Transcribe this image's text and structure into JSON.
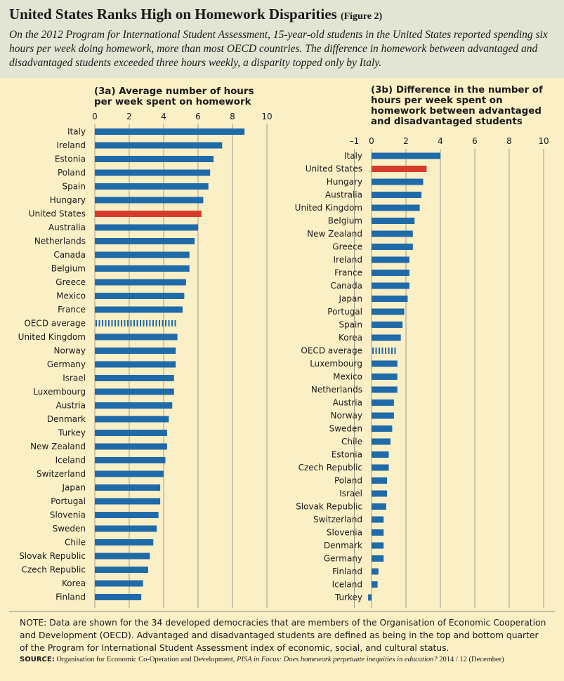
{
  "header": {
    "title": "United States Ranks High on Homework Disparities",
    "figure_label": "(Figure 2)",
    "subtitle": "On the 2012 Program for International Student Assessment, 15-year-old students in the United States reported spending six hours per week doing homework, more than most OECD countries. The difference in homework between advantaged and disadvantaged students exceeded three hours weekly, a disparity topped only by Italy."
  },
  "colors": {
    "bar": "#1f6aa8",
    "highlight": "#d63c2c",
    "header_bg": "#e2e5d3",
    "page_bg": "#fbefc6",
    "axis": "#8a8a80"
  },
  "chart_data": [
    {
      "type": "bar",
      "orientation": "horizontal",
      "panel_label": "(3a)",
      "title": "Average number of hours per week spent on homework",
      "xlim": [
        0,
        10
      ],
      "xticks": [
        0,
        2,
        4,
        6,
        8,
        10
      ],
      "tick_labels": [
        "0",
        "2",
        "4",
        "6",
        "8",
        "10"
      ],
      "highlight": "United States",
      "average_category": "OECD average",
      "categories": [
        "Italy",
        "Ireland",
        "Estonia",
        "Poland",
        "Spain",
        "Hungary",
        "United States",
        "Australia",
        "Netherlands",
        "Canada",
        "Belgium",
        "Greece",
        "Mexico",
        "France",
        "OECD average",
        "United Kingdom",
        "Norway",
        "Germany",
        "Israel",
        "Luxembourg",
        "Austria",
        "Denmark",
        "Turkey",
        "New Zealand",
        "Iceland",
        "Switzerland",
        "Japan",
        "Portugal",
        "Slovenia",
        "Sweden",
        "Chile",
        "Slovak Republic",
        "Czech Republic",
        "Korea",
        "Finland"
      ],
      "values": [
        8.7,
        7.4,
        6.9,
        6.7,
        6.6,
        6.3,
        6.2,
        6.0,
        5.8,
        5.5,
        5.5,
        5.3,
        5.2,
        5.1,
        4.9,
        4.8,
        4.7,
        4.7,
        4.6,
        4.6,
        4.5,
        4.3,
        4.2,
        4.2,
        4.1,
        4.0,
        3.8,
        3.8,
        3.7,
        3.6,
        3.4,
        3.2,
        3.1,
        2.8,
        2.7
      ]
    },
    {
      "type": "bar",
      "orientation": "horizontal",
      "panel_label": "(3b)",
      "title": "Difference in the number of hours per week spent on homework between advantaged and disadvantaged students",
      "xlim": [
        -1,
        10
      ],
      "xticks": [
        -1,
        0,
        2,
        4,
        6,
        8,
        10
      ],
      "tick_labels": [
        "–1",
        "0",
        "2",
        "4",
        "6",
        "8",
        "10"
      ],
      "highlight": "United States",
      "average_category": "OECD average",
      "categories": [
        "Italy",
        "United States",
        "Hungary",
        "Australia",
        "United Kingdom",
        "Belgium",
        "New Zealand",
        "Greece",
        "Ireland",
        "France",
        "Canada",
        "Japan",
        "Portugal",
        "Spain",
        "Korea",
        "OECD average",
        "Luxembourg",
        "Mexico",
        "Netherlands",
        "Austria",
        "Norway",
        "Sweden",
        "Chile",
        "Estonia",
        "Czech Republic",
        "Poland",
        "Israel",
        "Slovak Republic",
        "Switzerland",
        "Slovenia",
        "Denmark",
        "Germany",
        "Finland",
        "Iceland",
        "Turkey"
      ],
      "values": [
        4.0,
        3.2,
        3.0,
        2.9,
        2.8,
        2.5,
        2.4,
        2.4,
        2.2,
        2.2,
        2.2,
        2.1,
        1.9,
        1.8,
        1.7,
        1.6,
        1.5,
        1.5,
        1.5,
        1.3,
        1.3,
        1.2,
        1.1,
        1.0,
        1.0,
        0.9,
        0.9,
        0.85,
        0.7,
        0.7,
        0.7,
        0.7,
        0.4,
        0.35,
        -0.2
      ]
    }
  ],
  "footer": {
    "note": "NOTE: Data are shown for the 34 developed democracies that are members of the Organisation of Economic Cooperation and Development (OECD). Advantaged and disadvantaged students are defined as being in the top and bottom quarter of the Program for International Student Assessment index of economic, social, and cultural status.",
    "source_label": "SOURCE:",
    "source_org": "Organisation for Economic Co-Operation and Development,",
    "source_pub": "PISA in Focus: Does homework perpetuate inequities in education?",
    "source_date": "2014 / 12 (December)"
  }
}
